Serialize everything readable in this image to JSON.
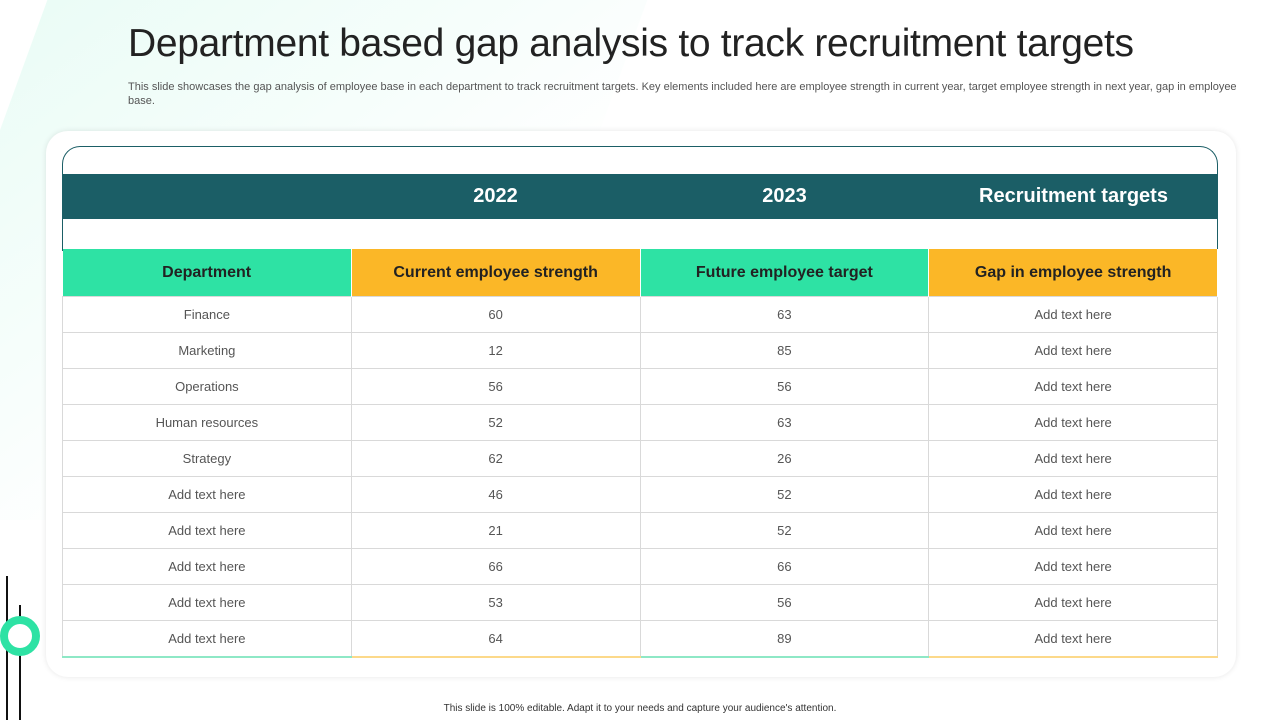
{
  "title": "Department based gap analysis to track recruitment targets",
  "subtitle": "This slide showcases the gap analysis of employee base in each department to track recruitment targets. Key elements included here are employee strength in current year, target employee strength in next year, gap in employee base.",
  "year_band": {
    "col1": "2022",
    "col2": "2023",
    "col3": "Recruitment  targets"
  },
  "table": {
    "headers": [
      "Department",
      "Current employee strength",
      "Future employee target",
      "Gap in employee strength"
    ],
    "rows": [
      [
        "Finance",
        "60",
        "63",
        "Add text here"
      ],
      [
        "Marketing",
        "12",
        "85",
        "Add text here"
      ],
      [
        "Operations",
        "56",
        "56",
        "Add text here"
      ],
      [
        "Human resources",
        "52",
        "63",
        "Add text here"
      ],
      [
        "Strategy",
        "62",
        "26",
        "Add text here"
      ],
      [
        "Add text here",
        "46",
        "52",
        "Add text here"
      ],
      [
        "Add text here",
        "21",
        "52",
        "Add text here"
      ],
      [
        "Add text here",
        "66",
        "66",
        "Add text here"
      ],
      [
        "Add text here",
        "53",
        "56",
        "Add text here"
      ],
      [
        "Add text here",
        "64",
        "89",
        "Add text here"
      ]
    ]
  },
  "footer": "This slide is 100% editable. Adapt it to your needs and capture your audience's attention.",
  "colors": {
    "teal": "#1b5e66",
    "green": "#2ee2a4",
    "orange": "#fbb727"
  }
}
